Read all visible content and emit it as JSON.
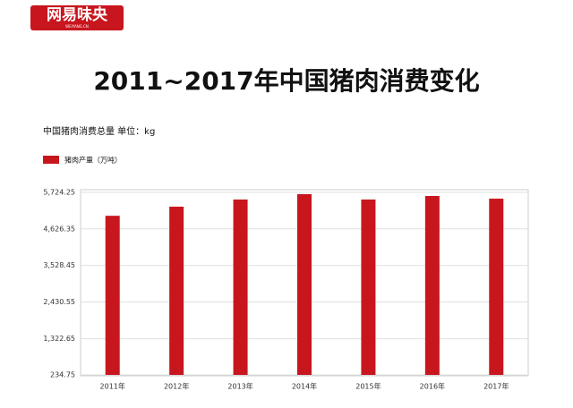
{
  "logo": {
    "name": "网易味央",
    "site": "WEIYANG.CN"
  },
  "chart_data": {
    "type": "bar",
    "title": "2011~2017年中国猪肉消费变化",
    "subtitle": "中国猪肉消费总量 单位：kg",
    "categories": [
      "2011年",
      "2012年",
      "2013年",
      "2014年",
      "2015年",
      "2016年",
      "2017年"
    ],
    "series": [
      {
        "name": "猪肉产量（万吨）",
        "color": "#c8161e",
        "values": [
          5020,
          5294,
          5509,
          5670,
          5509,
          5616,
          5535
        ]
      }
    ],
    "ylim": [
      234.75,
      5724.25
    ],
    "yticks": [
      234.75,
      {
        "value": 1322.65,
        "label": "1,322.65"
      },
      {
        "value": 2430.55,
        "label": "2,430.55"
      },
      {
        "value": 3528.45,
        "label": "3,528.45"
      },
      {
        "value": 4626.35,
        "label": "4,626.35"
      },
      {
        "value": 5724.25,
        "label": "5,724.25"
      }
    ],
    "grid": true,
    "legend": "top-left"
  }
}
